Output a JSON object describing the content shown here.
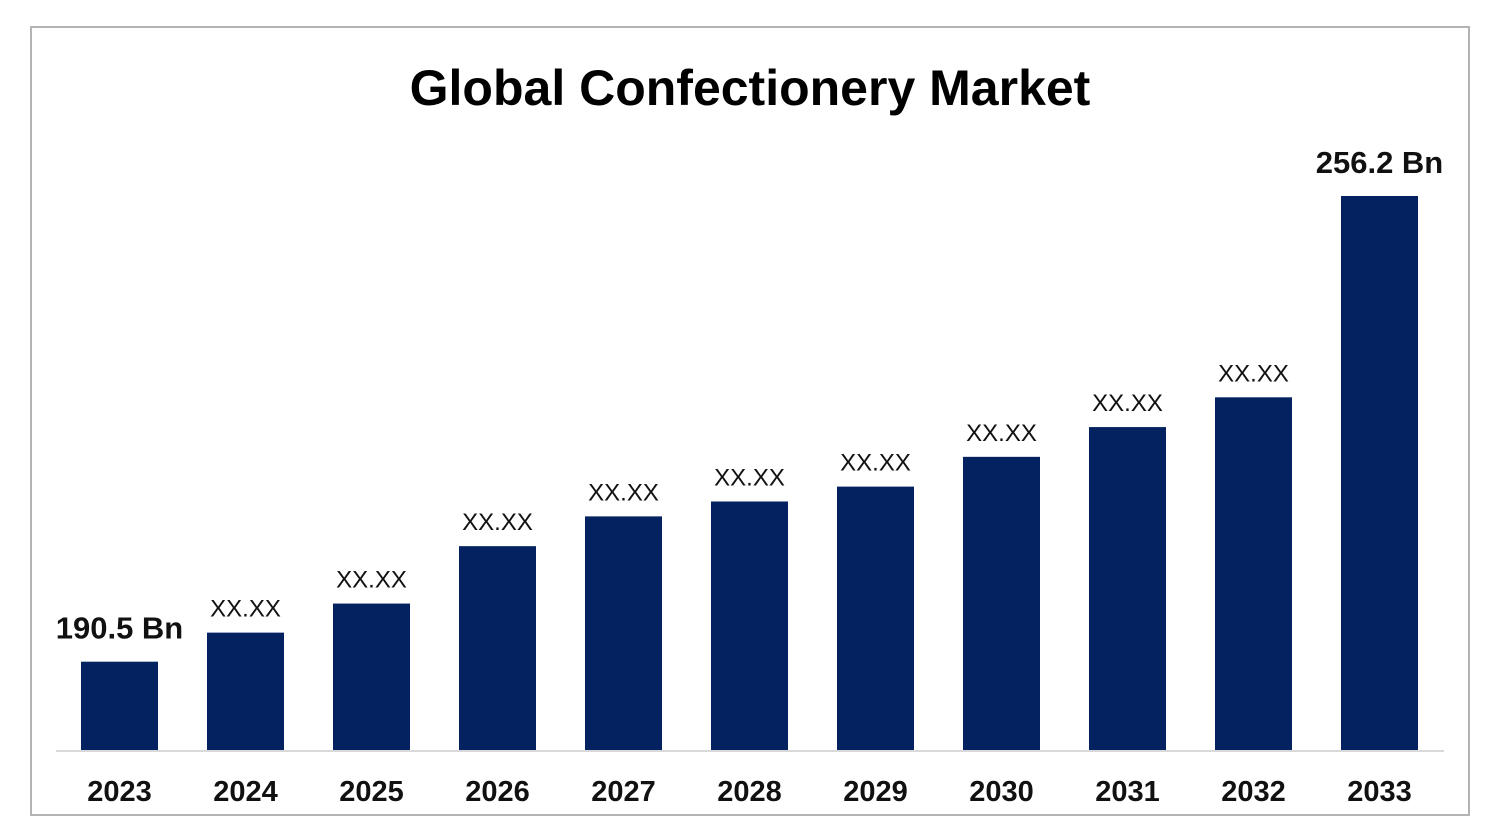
{
  "chart_data": {
    "type": "bar",
    "title": "Global Confectionery Market",
    "xlabel": "",
    "ylabel": "",
    "categories": [
      "2023",
      "2024",
      "2025",
      "2026",
      "2027",
      "2028",
      "2029",
      "2030",
      "2031",
      "2032",
      "2033"
    ],
    "values": [
      190.5,
      194.6,
      198.7,
      206.8,
      211.0,
      213.1,
      215.2,
      219.4,
      223.6,
      227.8,
      256.2
    ],
    "data_labels": [
      "190.5 Bn",
      "XX.XX",
      "XX.XX",
      "XX.XX",
      "XX.XX",
      "XX.XX",
      "XX.XX",
      "XX.XX",
      "XX.XX",
      "XX.XX",
      "256.2 Bn"
    ],
    "ylim": [
      177.9,
      256.2
    ],
    "grid": false,
    "legend": "none",
    "bar_color": "#042260",
    "axis_color": "#d9d9d9"
  }
}
